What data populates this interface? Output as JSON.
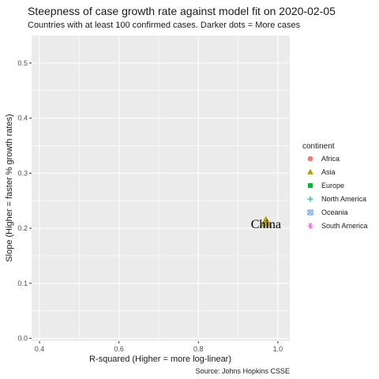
{
  "chart_data": {
    "type": "scatter",
    "title": "Steepness of case growth rate against model fit on 2020-02-05",
    "subtitle": "Countries with at least 100 confirmed cases. Darker dots = More cases",
    "xlabel": "R-squared (Higher = more log-linear)",
    "ylabel": "Slope (Higher = faster % growth rates)",
    "caption": "Source: Johns Hopkins CSSE",
    "xlim": [
      0.38,
      1.03
    ],
    "ylim": [
      -0.005,
      0.55
    ],
    "x_ticks": [
      0.4,
      0.6,
      0.8,
      1.0
    ],
    "x_tick_labels": [
      "0.4",
      "0.6",
      "0.8",
      "1.0"
    ],
    "y_ticks": [
      0.0,
      0.1,
      0.2,
      0.3,
      0.4,
      0.5
    ],
    "y_tick_labels": [
      "0.0",
      "0.1",
      "0.2",
      "0.3",
      "0.4",
      "0.5"
    ],
    "grid": true,
    "legend": {
      "title": "continent",
      "position": "right",
      "entries": [
        {
          "label": "Africa",
          "color": "#F8766D",
          "shape": "circle"
        },
        {
          "label": "Asia",
          "color": "#B79F00",
          "shape": "triangle"
        },
        {
          "label": "Europe",
          "color": "#00BA38",
          "shape": "square"
        },
        {
          "label": "North America",
          "color": "#00BFC4",
          "shape": "plus"
        },
        {
          "label": "Oceania",
          "color": "#619CFF",
          "shape": "boxcross"
        },
        {
          "label": "South America",
          "color": "#F564E3",
          "shape": "asterisk"
        }
      ]
    },
    "points": [
      {
        "label": "China",
        "x": 0.97,
        "y": 0.21,
        "continent": "Asia",
        "color": "#B79F00",
        "shape": "triangle"
      }
    ]
  }
}
